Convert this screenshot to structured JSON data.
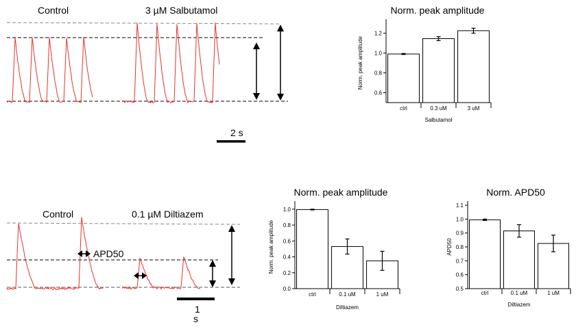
{
  "panels": {
    "top_left": {
      "control_label": "Control",
      "drug_label": "3 µM Salbutamol",
      "scale_label": "2 s"
    },
    "bottom_left": {
      "control_label": "Control",
      "drug_label": "0.1 µM Diltiazem",
      "apd_label": "APD50",
      "scale_label_1": "1",
      "scale_label_2": "s"
    }
  },
  "colors": {
    "trace": "#e8312a",
    "bar_fill": "#ffffff",
    "axis": "#000000"
  },
  "chart_data": [
    {
      "id": "salbutamol_amp",
      "type": "bar",
      "title": "Norm. peak amplitude",
      "xlabel": "Salbutamol",
      "ylabel": "Norm. peak amplitude",
      "categories": [
        "ctrl",
        "0.3 uM",
        "3 uM"
      ],
      "values": [
        0.99,
        1.145,
        1.225
      ],
      "errors": [
        0.005,
        0.02,
        0.025
      ],
      "ylim": [
        0.5,
        1.3
      ],
      "yticks": [
        0.6,
        0.8,
        1.0,
        1.2
      ],
      "ytick_labels": [
        "0.6",
        "0.8",
        "1.0",
        "1.2"
      ]
    },
    {
      "id": "diltiazem_amp",
      "type": "bar",
      "title": "Norm. peak amplitude",
      "xlabel": "Diltiazem",
      "ylabel": "Norm. peak amplitude",
      "categories": [
        "ctrl",
        "0.1 uM",
        "1 uM"
      ],
      "values": [
        0.995,
        0.53,
        0.35
      ],
      "errors": [
        0.005,
        0.095,
        0.12
      ],
      "ylim": [
        0.0,
        1.05
      ],
      "yticks": [
        0.0,
        0.2,
        0.4,
        0.6,
        0.8,
        1.0
      ],
      "ytick_labels": [
        "0.0",
        "0.2",
        "0.4",
        "0.6",
        "0.8",
        "1.0"
      ]
    },
    {
      "id": "diltiazem_apd",
      "type": "bar",
      "title": "Norm. APD50",
      "xlabel": "Diltiazem",
      "ylabel": "APD50",
      "categories": [
        "ctrl",
        "0.1 uM",
        "1 uM"
      ],
      "values": [
        0.995,
        0.915,
        0.825
      ],
      "errors": [
        0.005,
        0.045,
        0.06
      ],
      "ylim": [
        0.5,
        1.1
      ],
      "yticks": [
        0.5,
        0.6,
        0.7,
        0.8,
        0.9,
        1.0,
        1.1
      ],
      "ytick_labels": [
        "0.5",
        "0.6",
        "0.7",
        "0.8",
        "0.9",
        "1.0",
        "1.1"
      ]
    }
  ]
}
